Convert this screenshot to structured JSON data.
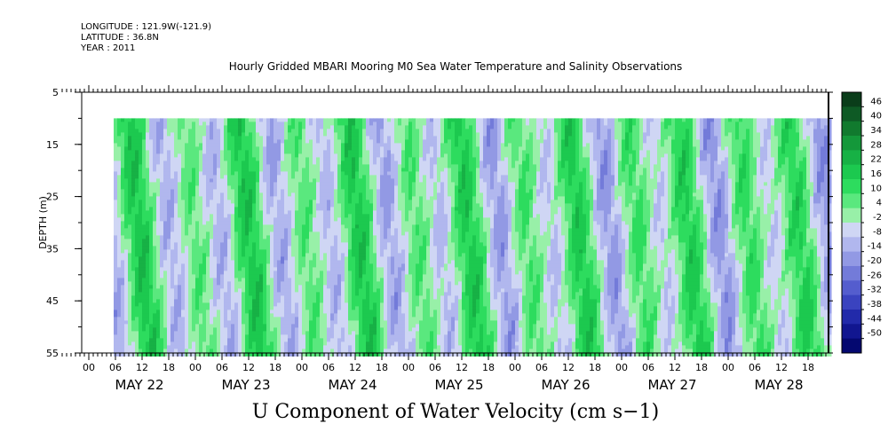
{
  "header": {
    "longitude": "LONGITUDE : 121.9W(-121.9)",
    "latitude": "LATITUDE : 36.8N",
    "year": "YEAR : 2011"
  },
  "chart_data": {
    "type": "heatmap",
    "title": "Hourly Gridded MBARI Mooring M0 Sea Water Temperature and Salinity Observations",
    "xlabel": "U Component of Water Velocity (cm s−1)",
    "ylabel": "DEPTH (m)",
    "ylim": [
      55,
      5
    ],
    "y_ticks": [
      "5",
      "15",
      "25",
      "35",
      "45",
      "55"
    ],
    "data_depth_range": [
      10,
      55
    ],
    "x_hour_labels": [
      "00",
      "06",
      "12",
      "18",
      "00",
      "06",
      "12",
      "18",
      "00",
      "06",
      "12",
      "18",
      "00",
      "06",
      "12",
      "18",
      "00",
      "06",
      "12",
      "18",
      "00",
      "06",
      "12",
      "18",
      "00",
      "06",
      "12",
      "18"
    ],
    "x_date_labels": [
      "MAY 22",
      "MAY 23",
      "MAY 24",
      "MAY 25",
      "MAY 26",
      "MAY 27",
      "MAY 28"
    ],
    "colorbar_labels": [
      "46",
      "40",
      "34",
      "28",
      "22",
      "16",
      "10",
      "4",
      "-2",
      "-8",
      "-14",
      "-20",
      "-26",
      "-32",
      "-38",
      "-44",
      "-50"
    ],
    "colorbar_colors": [
      "#0a3d1a",
      "#0e5a25",
      "#117a2e",
      "#14983a",
      "#17b145",
      "#1cc94f",
      "#2ddc5e",
      "#5ae87e",
      "#98f0a8",
      "#cfd6f4",
      "#b1b7ee",
      "#9299e4",
      "#737bd9",
      "#545dce",
      "#3a43bf",
      "#222aaa",
      "#111690",
      "#040870"
    ],
    "time_range_days": [
      "2011-05-21 18:00",
      "2011-05-28 23:00"
    ],
    "grid": false,
    "legend": "right colorbar"
  }
}
